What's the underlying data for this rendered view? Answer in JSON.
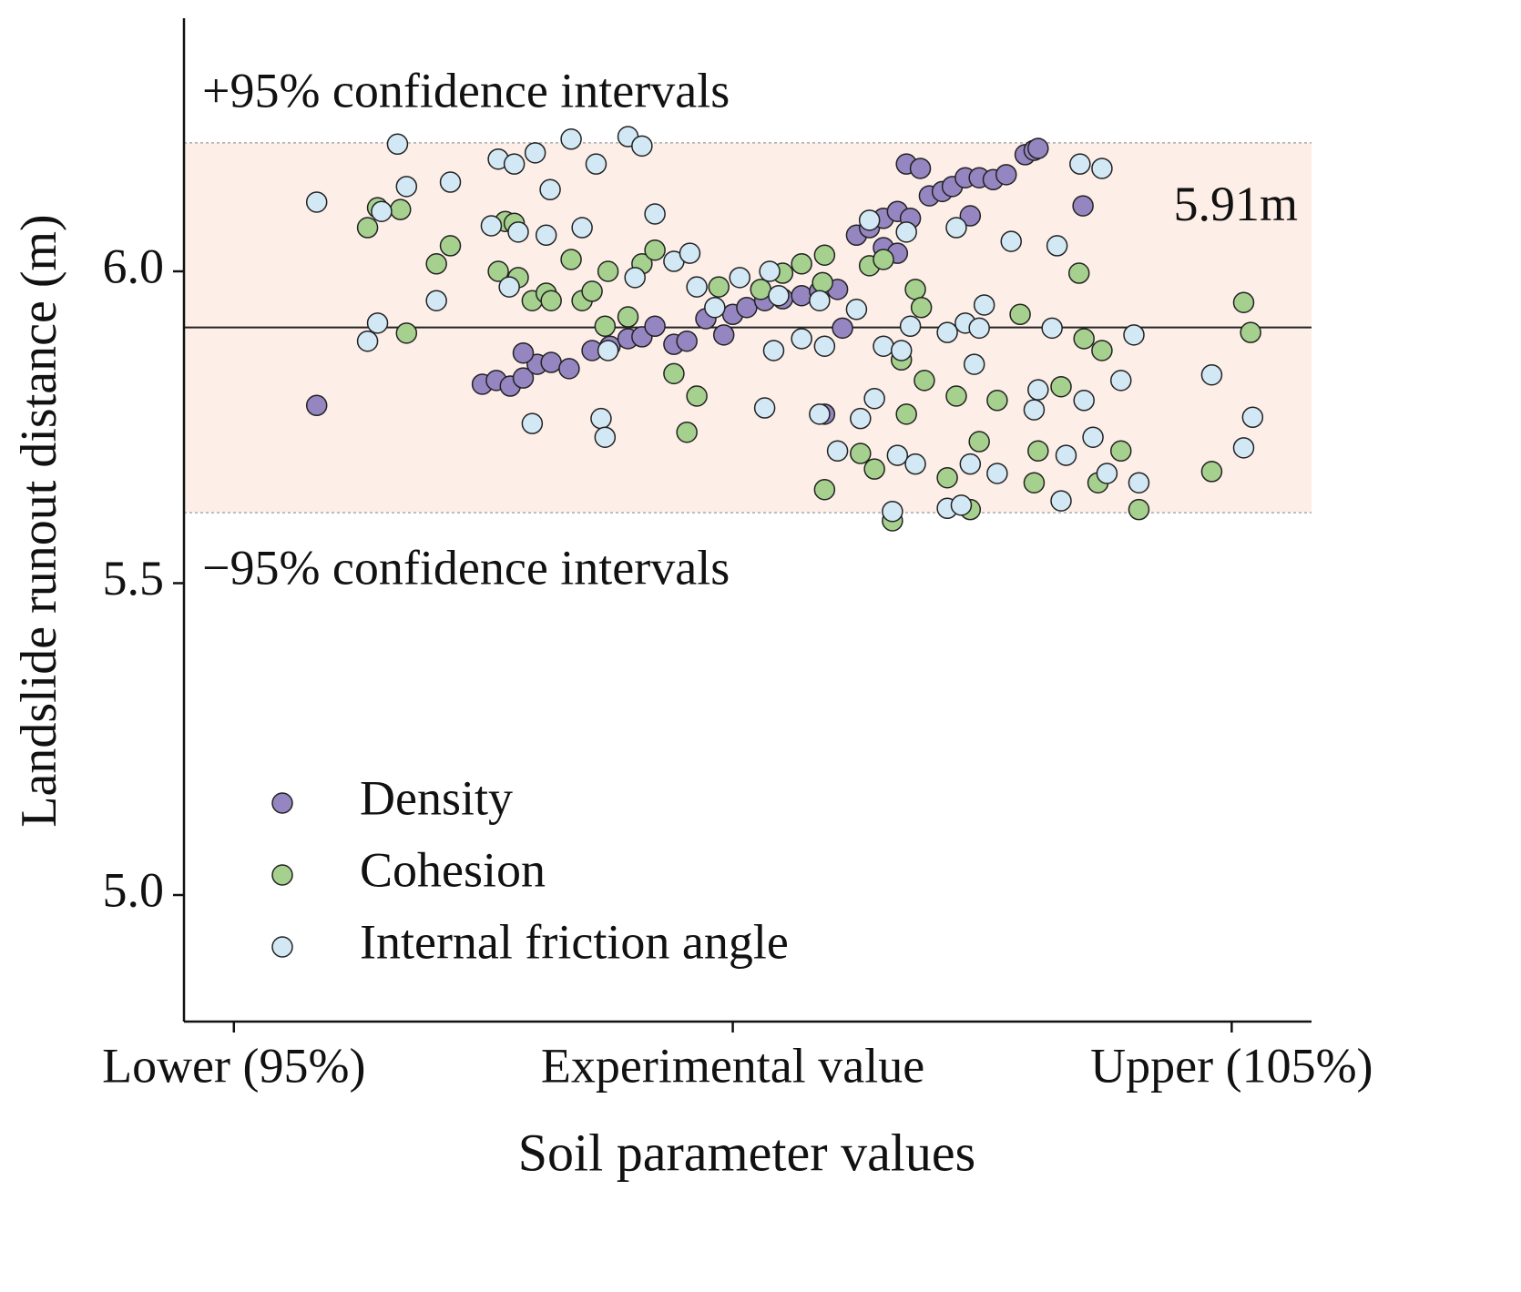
{
  "chart_data": {
    "type": "scatter",
    "x_label": "Soil parameter values",
    "y_label": "Landslide runout distance (m)",
    "xlim": [
      94.5,
      105.8
    ],
    "xticks": [
      {
        "value": 95,
        "label": "Lower (95%)"
      },
      {
        "value": 100,
        "label": "Experimental value"
      },
      {
        "value": 105,
        "label": "Upper (105%)"
      }
    ],
    "ylim": [
      4.8,
      6.4
    ],
    "yticks": [
      {
        "value": 5.0,
        "label": "5.0"
      },
      {
        "value": 5.5,
        "label": "5.5"
      },
      {
        "value": 6.0,
        "label": "6.0"
      }
    ],
    "grid": false,
    "legend": "lower left",
    "band": {
      "upper": 6.206,
      "lower": 5.613,
      "color": "#fdeee8"
    },
    "reference_lines": [
      {
        "value": 6.206,
        "label": "+95% confidence intervals",
        "style": "dotted"
      },
      {
        "value": 5.613,
        "label": "−95% confidence intervals",
        "style": "dotted"
      },
      {
        "value": 5.91,
        "label": "5.91m",
        "style": "solid"
      }
    ],
    "series": [
      {
        "name": "Density",
        "color": "#9585c0",
        "x": [
          95.83,
          97.49,
          97.63,
          97.77,
          97.9,
          98.04,
          98.18,
          97.9,
          98.36,
          98.59,
          98.77,
          98.95,
          99.09,
          99.22,
          99.41,
          99.54,
          99.73,
          99.91,
          100.0,
          100.14,
          100.32,
          100.5,
          100.69,
          100.87,
          101.05,
          101.1,
          101.24,
          101.37,
          101.51,
          101.65,
          101.78,
          101.51,
          101.74,
          101.88,
          101.97,
          102.1,
          102.2,
          102.33,
          102.47,
          102.61,
          102.74,
          102.93,
          103.02,
          103.06,
          103.51,
          102.38,
          100.92,
          101.65
        ],
        "y": [
          5.785,
          5.819,
          5.825,
          5.816,
          5.829,
          5.851,
          5.854,
          5.869,
          5.844,
          5.873,
          5.88,
          5.892,
          5.895,
          5.912,
          5.883,
          5.888,
          5.924,
          5.898,
          5.931,
          5.942,
          5.953,
          5.956,
          5.961,
          5.968,
          5.971,
          5.909,
          6.058,
          6.07,
          6.085,
          6.096,
          6.085,
          6.038,
          6.172,
          6.165,
          6.121,
          6.128,
          6.136,
          6.15,
          6.15,
          6.147,
          6.155,
          6.187,
          6.194,
          6.197,
          6.105,
          6.089,
          5.771,
          6.029
        ]
      },
      {
        "name": "Cohesion",
        "color": "#a6d08d",
        "x": [
          96.34,
          96.44,
          96.67,
          96.73,
          97.03,
          97.17,
          97.65,
          97.72,
          97.81,
          97.85,
          97.99,
          98.13,
          98.18,
          98.38,
          98.49,
          98.59,
          98.75,
          98.72,
          98.95,
          99.09,
          99.22,
          99.41,
          99.54,
          99.64,
          99.86,
          100.28,
          100.5,
          100.69,
          100.92,
          100.92,
          101.28,
          101.37,
          101.42,
          101.51,
          101.6,
          101.69,
          101.74,
          101.83,
          101.89,
          102.15,
          102.24,
          102.38,
          102.47,
          102.65,
          102.88,
          103.02,
          103.06,
          103.29,
          103.47,
          103.52,
          103.7,
          103.66,
          103.89,
          104.07,
          104.8,
          105.12,
          105.19,
          100.9,
          101.92
        ],
        "y": [
          6.07,
          6.102,
          6.099,
          5.901,
          6.012,
          6.041,
          6.0,
          6.08,
          6.077,
          5.99,
          5.953,
          5.965,
          5.953,
          6.019,
          5.953,
          5.968,
          6.0,
          5.912,
          5.927,
          6.012,
          6.034,
          5.836,
          5.742,
          5.8,
          5.975,
          5.971,
          5.997,
          6.012,
          6.026,
          5.65,
          5.708,
          6.009,
          5.683,
          6.019,
          5.6,
          5.858,
          5.771,
          5.971,
          5.942,
          5.669,
          5.8,
          5.618,
          5.727,
          5.793,
          5.931,
          5.661,
          5.712,
          5.815,
          5.997,
          5.892,
          5.873,
          5.661,
          5.712,
          5.618,
          5.679,
          5.95,
          5.902,
          5.982,
          5.825
        ]
      },
      {
        "name": "Internal friction angle",
        "color": "#d2e8f5",
        "x": [
          95.83,
          96.34,
          96.44,
          96.48,
          96.64,
          96.73,
          97.03,
          97.17,
          97.58,
          97.65,
          97.76,
          97.81,
          97.85,
          97.99,
          98.02,
          98.13,
          98.17,
          98.38,
          98.49,
          98.63,
          98.68,
          98.72,
          98.75,
          99.02,
          98.95,
          99.09,
          99.22,
          99.41,
          99.57,
          99.64,
          99.82,
          100.07,
          100.32,
          100.37,
          100.41,
          100.46,
          100.69,
          100.87,
          100.92,
          101.05,
          101.24,
          101.37,
          101.42,
          101.51,
          101.6,
          101.65,
          101.69,
          101.74,
          101.78,
          101.83,
          102.15,
          102.15,
          102.24,
          102.29,
          102.33,
          102.38,
          102.42,
          102.47,
          102.52,
          102.65,
          102.79,
          103.02,
          103.06,
          103.2,
          103.25,
          103.29,
          103.34,
          103.48,
          103.52,
          103.61,
          103.7,
          103.75,
          103.89,
          104.02,
          104.07,
          104.8,
          105.12,
          105.21,
          100.87,
          101.28
        ],
        "y": [
          6.111,
          5.888,
          5.917,
          6.096,
          6.204,
          6.136,
          5.953,
          6.143,
          6.073,
          6.18,
          5.975,
          6.172,
          6.063,
          5.756,
          6.19,
          6.058,
          6.131,
          6.212,
          6.07,
          6.172,
          5.764,
          5.734,
          5.873,
          5.99,
          6.216,
          6.201,
          6.092,
          6.016,
          6.029,
          5.975,
          5.942,
          5.99,
          5.781,
          6.0,
          5.873,
          5.961,
          5.892,
          5.771,
          5.88,
          5.712,
          5.939,
          6.082,
          5.796,
          5.88,
          5.615,
          5.705,
          5.873,
          6.063,
          5.912,
          5.691,
          5.62,
          5.902,
          6.07,
          5.625,
          5.917,
          5.691,
          5.851,
          5.909,
          5.946,
          5.676,
          6.048,
          5.778,
          5.81,
          5.909,
          6.041,
          5.632,
          5.705,
          6.172,
          5.793,
          5.734,
          6.165,
          5.676,
          5.825,
          5.898,
          5.661,
          5.834,
          5.717,
          5.766,
          5.953,
          5.764
        ]
      }
    ]
  }
}
